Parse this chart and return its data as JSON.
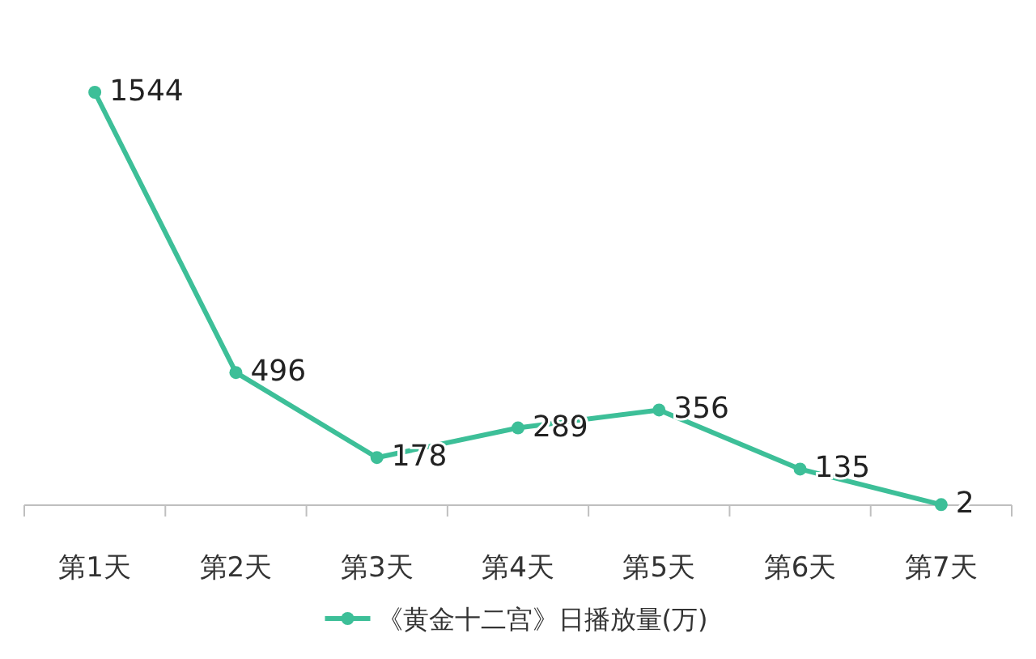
{
  "chart_data": {
    "type": "line",
    "categories": [
      "第1天",
      "第2天",
      "第3天",
      "第4天",
      "第5天",
      "第6天",
      "第7天"
    ],
    "series": [
      {
        "name": "《黄金十二宫》日播放量(万)",
        "color": "#3dbf98",
        "values": [
          1544,
          496,
          178,
          289,
          356,
          135,
          2
        ]
      }
    ],
    "data_labels": true,
    "legend": "bottom",
    "marker": "circle",
    "grid": false
  }
}
